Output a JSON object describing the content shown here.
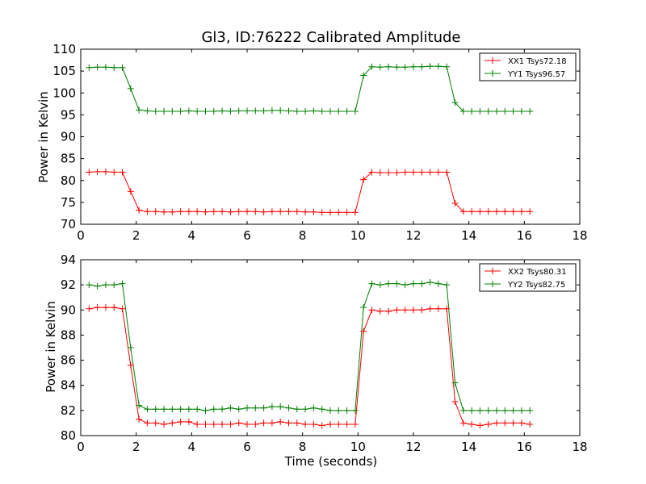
{
  "chart_data": [
    {
      "type": "line",
      "title": "Gl3, ID:76222 Calibrated Amplitude",
      "xlabel": "",
      "ylabel": "Power in Kelvin",
      "xlim": [
        0,
        18
      ],
      "ylim": [
        70,
        110
      ],
      "xticks": [
        0,
        2,
        4,
        6,
        8,
        10,
        12,
        14,
        16,
        18
      ],
      "yticks": [
        70,
        75,
        80,
        85,
        90,
        95,
        100,
        105,
        110
      ],
      "legend_position": "top-right",
      "x": [
        0.3,
        0.6,
        0.9,
        1.2,
        1.5,
        1.8,
        2.1,
        2.4,
        2.7,
        3.0,
        3.3,
        3.6,
        3.9,
        4.2,
        4.5,
        4.8,
        5.1,
        5.4,
        5.7,
        6.0,
        6.3,
        6.6,
        6.9,
        7.2,
        7.5,
        7.8,
        8.1,
        8.4,
        8.7,
        9.0,
        9.3,
        9.6,
        9.9,
        10.2,
        10.5,
        10.8,
        11.1,
        11.4,
        11.7,
        12.0,
        12.3,
        12.6,
        12.9,
        13.2,
        13.5,
        13.8,
        14.1,
        14.4,
        14.7,
        15.0,
        15.3,
        15.6,
        15.9,
        16.2
      ],
      "series": [
        {
          "name": "XX1 Tsys72.18",
          "color": "#ff0000",
          "values": [
            81.9,
            82.0,
            82.0,
            81.9,
            81.9,
            77.5,
            73.2,
            72.9,
            72.9,
            72.8,
            72.8,
            72.9,
            72.9,
            72.9,
            72.8,
            72.9,
            72.9,
            72.8,
            72.9,
            72.9,
            72.9,
            72.8,
            72.9,
            72.9,
            72.9,
            72.9,
            72.8,
            72.8,
            72.7,
            72.7,
            72.7,
            72.7,
            72.7,
            80.2,
            81.9,
            81.8,
            81.8,
            81.8,
            81.9,
            81.9,
            81.9,
            81.9,
            81.9,
            81.9,
            74.8,
            72.9,
            72.9,
            72.9,
            72.9,
            72.9,
            72.9,
            72.9,
            72.9,
            72.9
          ]
        },
        {
          "name": "YY1 Tsys96.57",
          "color": "#008000",
          "values": [
            105.8,
            105.9,
            105.9,
            105.8,
            105.8,
            101.0,
            96.1,
            95.9,
            95.8,
            95.8,
            95.8,
            95.8,
            95.9,
            95.8,
            95.8,
            95.8,
            95.9,
            95.8,
            95.9,
            95.9,
            95.9,
            95.9,
            96.0,
            96.0,
            95.9,
            95.8,
            95.8,
            95.9,
            95.8,
            95.8,
            95.8,
            95.8,
            95.8,
            104.0,
            106.0,
            105.9,
            106.0,
            105.9,
            105.9,
            106.0,
            106.0,
            106.1,
            106.1,
            106.0,
            97.8,
            95.8,
            95.8,
            95.8,
            95.8,
            95.8,
            95.8,
            95.8,
            95.8,
            95.8
          ]
        }
      ]
    },
    {
      "type": "line",
      "title": "",
      "xlabel": "Time (seconds)",
      "ylabel": "Power in Kelvin",
      "xlim": [
        0,
        18
      ],
      "ylim": [
        80,
        94
      ],
      "xticks": [
        0,
        2,
        4,
        6,
        8,
        10,
        12,
        14,
        16,
        18
      ],
      "yticks": [
        80,
        82,
        84,
        86,
        88,
        90,
        92,
        94
      ],
      "legend_position": "top-right",
      "x": [
        0.3,
        0.6,
        0.9,
        1.2,
        1.5,
        1.8,
        2.1,
        2.4,
        2.7,
        3.0,
        3.3,
        3.6,
        3.9,
        4.2,
        4.5,
        4.8,
        5.1,
        5.4,
        5.7,
        6.0,
        6.3,
        6.6,
        6.9,
        7.2,
        7.5,
        7.8,
        8.1,
        8.4,
        8.7,
        9.0,
        9.3,
        9.6,
        9.9,
        10.2,
        10.5,
        10.8,
        11.1,
        11.4,
        11.7,
        12.0,
        12.3,
        12.6,
        12.9,
        13.2,
        13.5,
        13.8,
        14.1,
        14.4,
        14.7,
        15.0,
        15.3,
        15.6,
        15.9,
        16.2
      ],
      "series": [
        {
          "name": "XX2 Tsys80.31",
          "color": "#ff0000",
          "values": [
            90.1,
            90.2,
            90.2,
            90.2,
            90.1,
            85.6,
            81.3,
            81.0,
            81.0,
            80.9,
            81.0,
            81.1,
            81.1,
            80.9,
            80.9,
            80.9,
            80.9,
            80.9,
            81.0,
            80.9,
            80.9,
            81.0,
            81.0,
            81.1,
            81.0,
            81.0,
            80.9,
            80.9,
            80.8,
            80.9,
            80.9,
            80.9,
            80.9,
            88.3,
            90.0,
            89.9,
            89.9,
            90.0,
            90.0,
            90.0,
            90.0,
            90.1,
            90.1,
            90.1,
            82.7,
            81.0,
            80.9,
            80.8,
            80.9,
            81.0,
            81.0,
            81.0,
            81.0,
            80.9
          ]
        },
        {
          "name": "YY2 Tsys82.75",
          "color": "#008000",
          "values": [
            92.0,
            91.9,
            92.0,
            92.0,
            92.1,
            87.0,
            82.4,
            82.1,
            82.1,
            82.1,
            82.1,
            82.1,
            82.1,
            82.1,
            82.0,
            82.1,
            82.1,
            82.2,
            82.1,
            82.2,
            82.2,
            82.2,
            82.3,
            82.3,
            82.2,
            82.1,
            82.1,
            82.2,
            82.1,
            82.0,
            82.0,
            82.0,
            82.0,
            90.2,
            92.1,
            92.0,
            92.1,
            92.1,
            92.0,
            92.1,
            92.1,
            92.2,
            92.1,
            92.0,
            84.2,
            82.0,
            82.0,
            82.0,
            82.0,
            82.0,
            82.0,
            82.0,
            82.0,
            82.0
          ]
        }
      ]
    }
  ]
}
